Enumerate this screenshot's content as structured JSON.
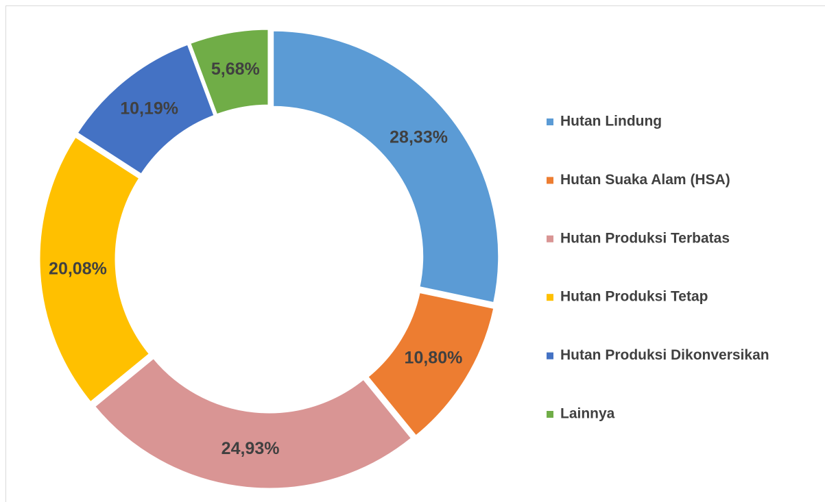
{
  "chart_data": {
    "type": "donut",
    "categories": [
      "Hutan Lindung",
      "Hutan Suaka Alam (HSA)",
      "Hutan Produksi Terbatas",
      "Hutan Produksi Tetap",
      "Hutan Produksi Dikonversikan",
      "Lainnya"
    ],
    "values": [
      28.33,
      10.8,
      24.93,
      20.08,
      10.19,
      5.68
    ],
    "value_labels": [
      "28,33%",
      "10,80%",
      "24,93%",
      "20,08%",
      "10,19%",
      "5,68%"
    ],
    "colors": [
      "#5b9bd5",
      "#ed7d31",
      "#d99594",
      "#ffc000",
      "#4472c4",
      "#70ad47"
    ],
    "legend": "right"
  }
}
